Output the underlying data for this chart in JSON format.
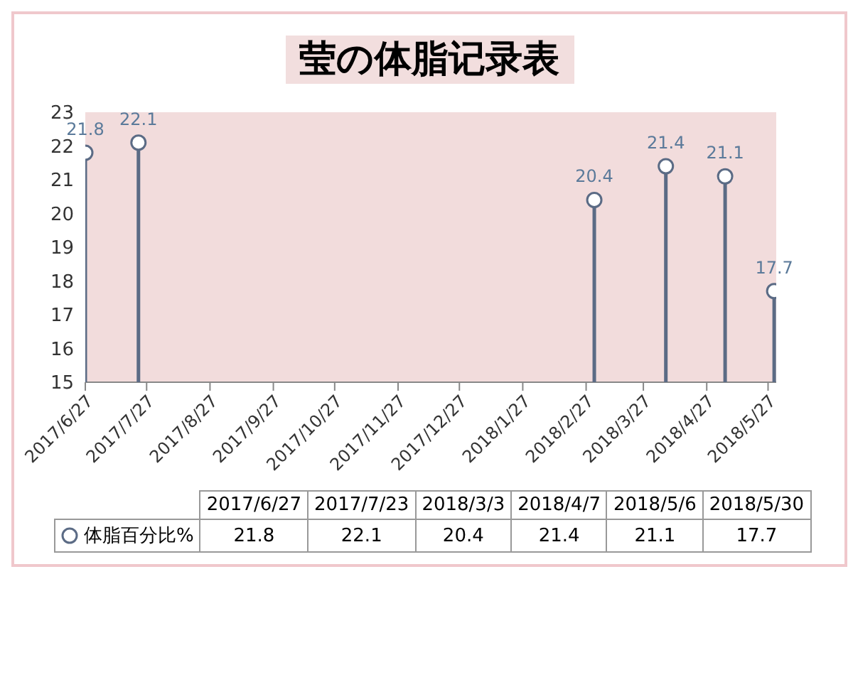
{
  "chart_data": [
    {
      "type": "lollipop",
      "title": "莹の体脂记录表",
      "x": [
        "2017-06-27",
        "2017-07-23",
        "2018-03-03",
        "2018-04-07",
        "2018-05-06",
        "2018-05-30"
      ],
      "series": [
        {
          "color": "#5b6b85",
          "values": [
            21.8,
            22.1,
            20.4,
            21.4,
            21.1,
            17.7
          ]
        }
      ],
      "xlim": [
        "2017-06-27",
        "2018-05-31"
      ],
      "xticks": [
        {
          "value": "2017-06-27",
          "label": "2017/6/27"
        },
        {
          "value": "2017-07-27",
          "label": "2017/7/27"
        },
        {
          "value": "2017-08-27",
          "label": "2017/8/27"
        },
        {
          "value": "2017-09-27",
          "label": "2017/9/27"
        },
        {
          "value": "2017-10-27",
          "label": "2017/10/27"
        },
        {
          "value": "2017-11-27",
          "label": "2017/11/27"
        },
        {
          "value": "2017-12-27",
          "label": "2017/12/27"
        },
        {
          "value": "2018-01-27",
          "label": "2018/1/27"
        },
        {
          "value": "2018-02-27",
          "label": "2018/2/27"
        },
        {
          "value": "2018-03-27",
          "label": "2018/3/27"
        },
        {
          "value": "2018-04-27",
          "label": "2018/4/27"
        },
        {
          "value": "2018-05-27",
          "label": "2018/5/27"
        }
      ],
      "ylim": [
        15,
        23
      ],
      "yticks": [
        15,
        16,
        17,
        18,
        19,
        20,
        21,
        22,
        23
      ],
      "marker": "circle",
      "data_labels": true
    },
    {
      "type": "other",
      "categories": [
        "2017/6/27",
        "2017/7/23",
        "2018/3/3",
        "2018/4/7",
        "2018/5/6",
        "2018/5/30"
      ],
      "series": [
        {
          "name": "体脂百分比%",
          "color": "#5b6b85",
          "values": [
            21.8,
            22.1,
            20.4,
            21.4,
            21.1,
            17.7
          ]
        }
      ],
      "data_labels": true
    }
  ]
}
